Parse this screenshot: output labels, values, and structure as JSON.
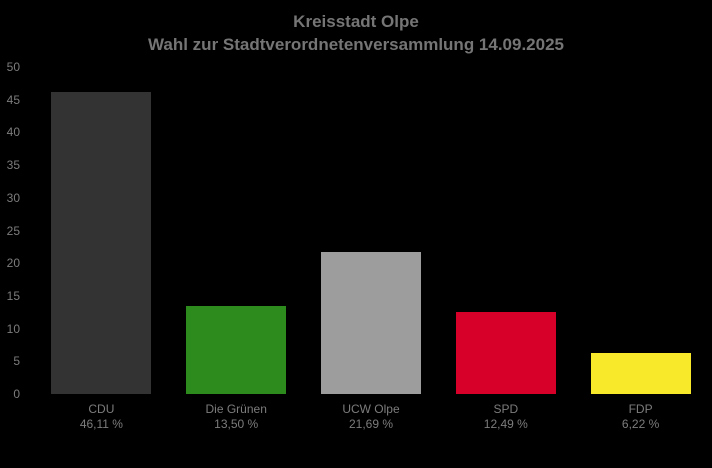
{
  "title": {
    "line1": "Kreisstadt Olpe",
    "line2": "Wahl zur Stadtverordnetenversammlung 14.09.2025"
  },
  "colors": {
    "background": "#000000",
    "title_text": "#757575",
    "axis_text": "#7c7c7c",
    "label_text": "#7c7c7c"
  },
  "chart_data": {
    "type": "bar",
    "title": "Kreisstadt Olpe",
    "subtitle": "Wahl zur Stadtverordnetenversammlung 14.09.2025",
    "categories": [
      "CDU",
      "Die Grünen",
      "UCW Olpe",
      "SPD",
      "FDP"
    ],
    "values": [
      46.11,
      13.5,
      21.69,
      12.49,
      6.22
    ],
    "value_labels": [
      "46,11 %",
      "13,50 %",
      "21,69 %",
      "12,49 %",
      "6,22 %"
    ],
    "bar_colors": [
      "#333333",
      "#2d8b1e",
      "#9d9d9d",
      "#d60029",
      "#f8ea2b"
    ],
    "xlabel": "",
    "ylabel": "",
    "ylim": [
      0,
      50
    ],
    "yticks": [
      0,
      5,
      10,
      15,
      20,
      25,
      30,
      35,
      40,
      45,
      50
    ],
    "grid": false,
    "legend": false
  }
}
